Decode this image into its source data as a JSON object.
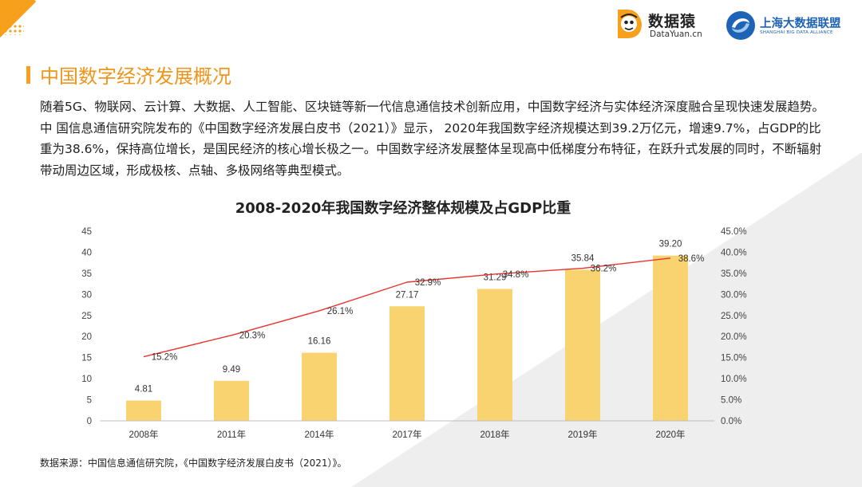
{
  "header": {
    "logo_primary": {
      "name": "数据猿",
      "subtitle": "DataYuan.cn"
    },
    "logo_secondary": {
      "name": "上海大数据联盟",
      "subtitle": "SHANGHAI BIG DATA ALLIANCE"
    }
  },
  "section": {
    "title": "中国数字经济发展概况",
    "intro": "随着5G、物联网、云计算、大数据、人工智能、区块链等新一代信息通信技术创新应用，中国数字经济与实体经济深度融合呈现快速发展趋势。 中 国信息通信研究院发布的《中国数字经济发展白皮书（2021）》显示， 2020年我国数字经济规模达到39.2万亿元，增速9.7%，占GDP的比重为38.6%，保持高位增长，是国民经济的核心增长极之一。中国数字经济发展整体呈现高中低梯度分布特征，在跃升式发展的同时，不断辐射带动周边区域，形成极核、点轴、多极网络等典型模式。"
  },
  "chart_data": {
    "type": "bar",
    "title": "2008-2020年我国数字经济整体规模及占GDP比重",
    "categories": [
      "2008年",
      "2011年",
      "2014年",
      "2017年",
      "2018年",
      "2019年",
      "2020年"
    ],
    "series": [
      {
        "name": "数字经济规模",
        "type": "bar",
        "axis": "left",
        "values": [
          4.81,
          9.49,
          16.16,
          27.17,
          31.29,
          35.84,
          39.2
        ],
        "labels": [
          "4.81",
          "9.49",
          "16.16",
          "27.17",
          "31.29",
          "35.84",
          "39.20"
        ]
      },
      {
        "name": "占GDP比重",
        "type": "line",
        "axis": "right",
        "values": [
          15.2,
          20.3,
          26.1,
          32.9,
          34.8,
          36.2,
          38.6
        ],
        "labels": [
          "15.2%",
          "20.3%",
          "26.1%",
          "32.9%",
          "34.8%",
          "36.2%",
          "38.6%"
        ]
      }
    ],
    "y_left": {
      "min": 0,
      "max": 45,
      "step": 5,
      "ticks": [
        "0",
        "5",
        "10",
        "15",
        "20",
        "25",
        "30",
        "35",
        "40",
        "45"
      ]
    },
    "y_right": {
      "min": 0,
      "max": 45,
      "step": 5,
      "ticks": [
        "0.0%",
        "5.0%",
        "10.0%",
        "15.0%",
        "20.0%",
        "25.0%",
        "30.0%",
        "35.0%",
        "40.0%",
        "45.0%"
      ]
    },
    "grid": false,
    "legend": "none"
  },
  "source": "数据来源：中国信息通信研究院，《中国数字经济发展白皮书（2021）》。",
  "colors": {
    "accent": "#f7a01c",
    "bar": "#f9d36f",
    "line": "#e8332f",
    "title_text": "#f0951b"
  }
}
